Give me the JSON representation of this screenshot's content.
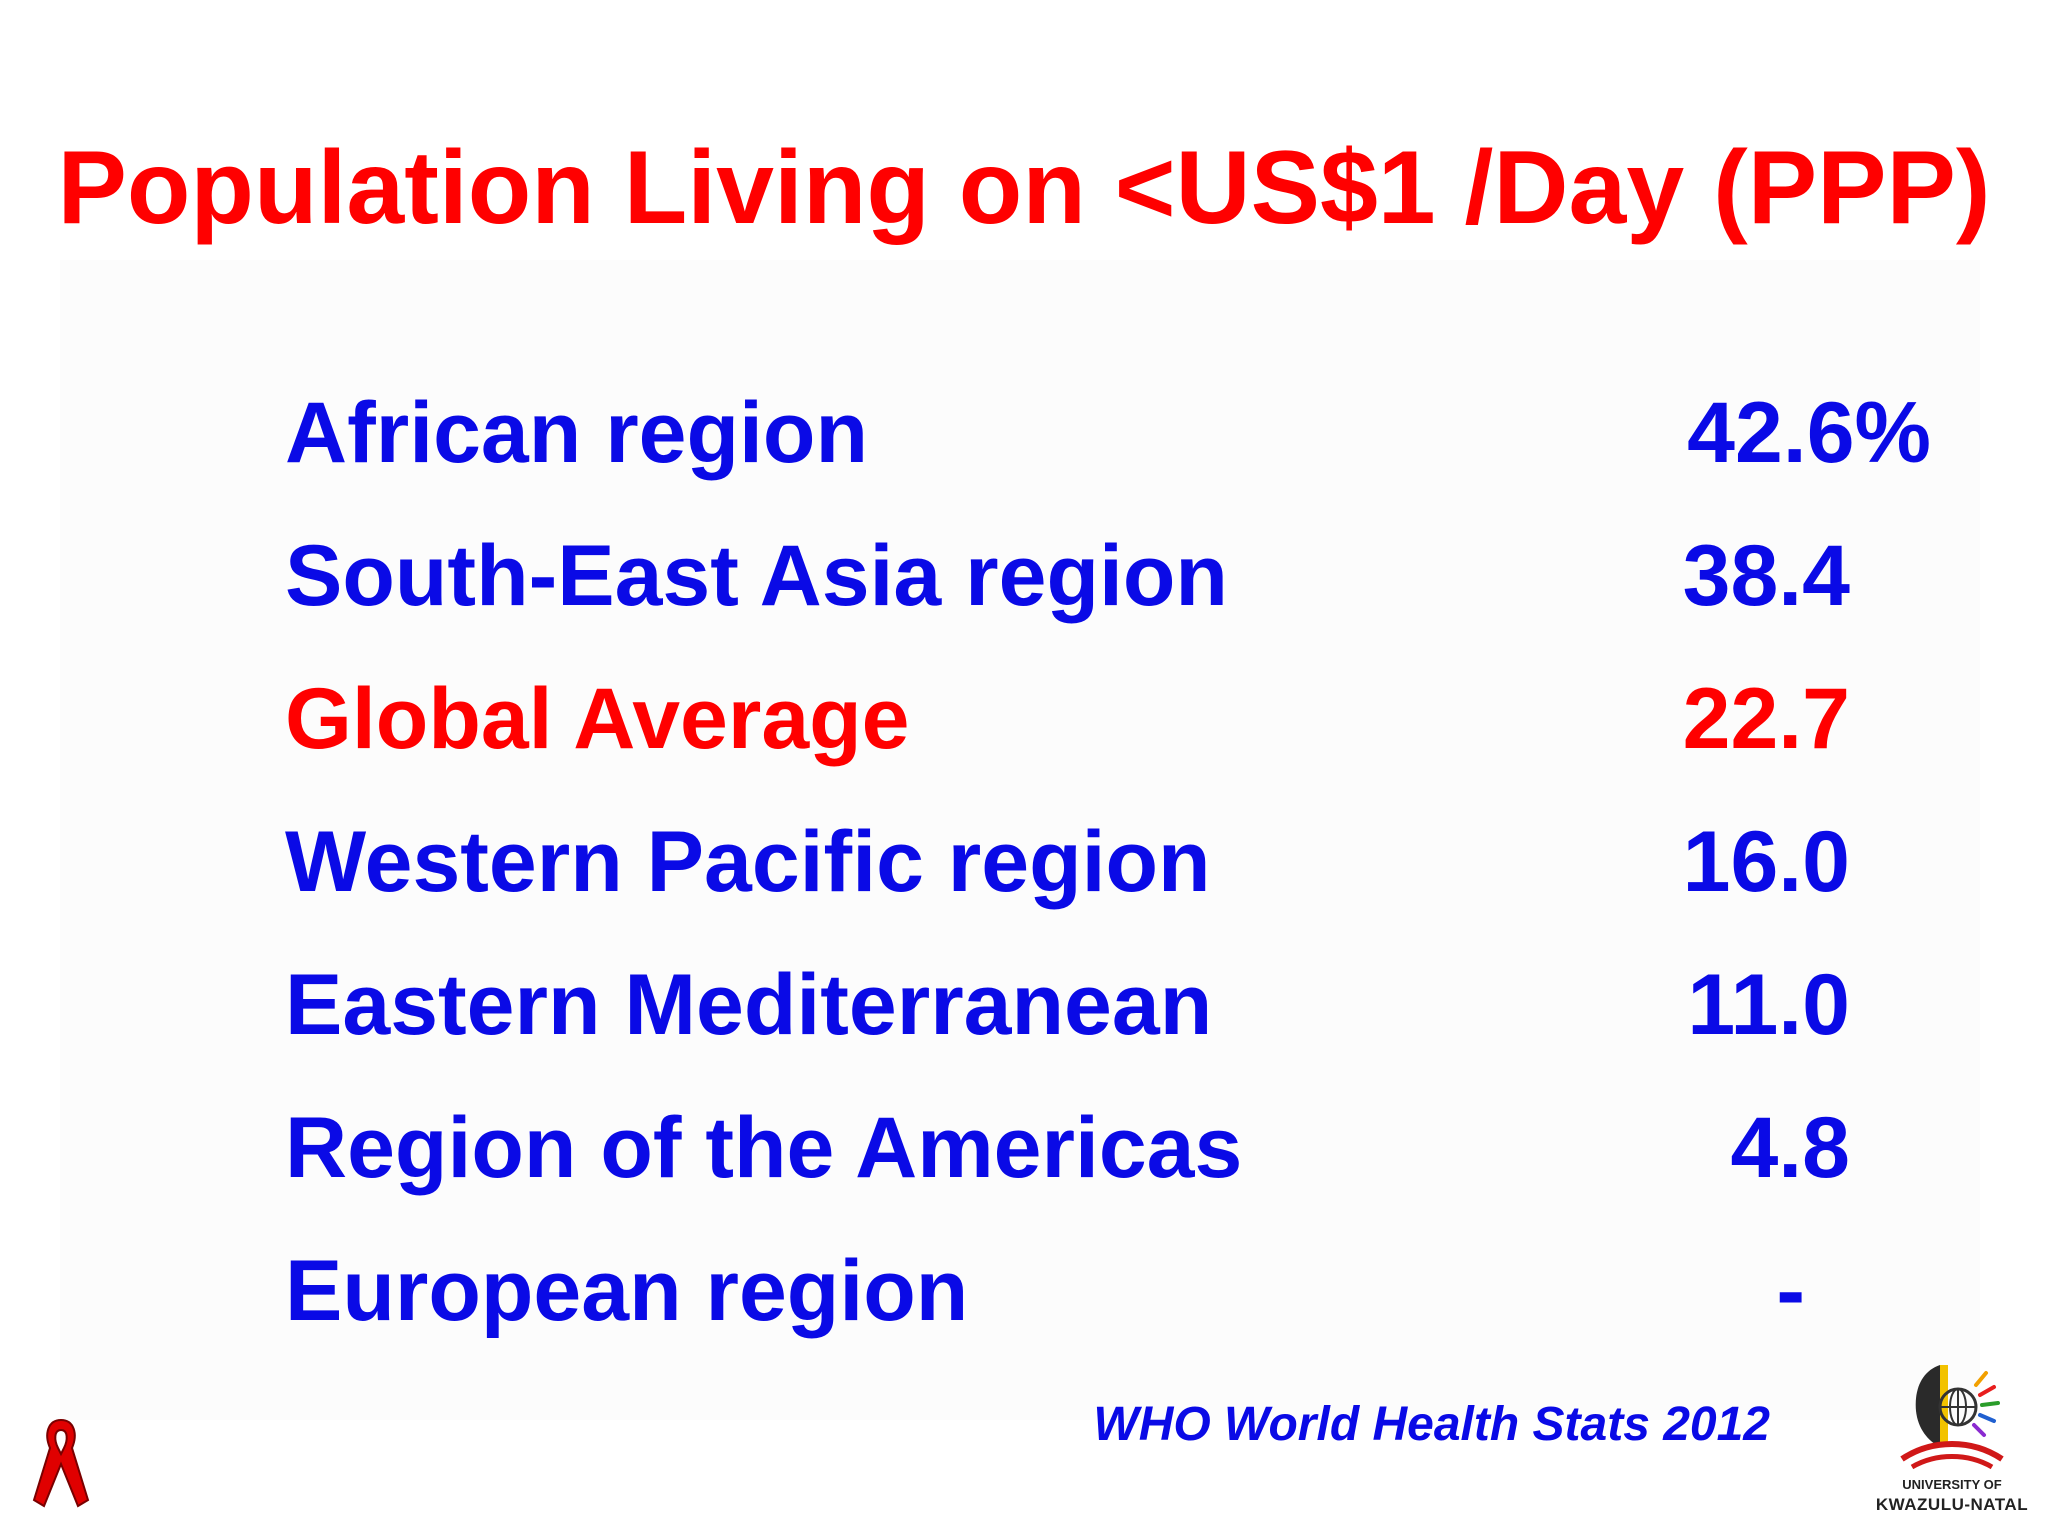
{
  "slide": {
    "title": "Population Living on <US$1 /Day (PPP)",
    "rows": [
      {
        "label": "African region",
        "value": "42.6%"
      },
      {
        "label": "South-East Asia region",
        "value": "38.4"
      },
      {
        "label": "Global Average",
        "value": "22.7"
      },
      {
        "label": "Western Pacific region",
        "value": "16.0"
      },
      {
        "label": "Eastern Mediterranean",
        "value": "11.0"
      },
      {
        "label": "Region of the Americas",
        "value": "4.8"
      },
      {
        "label": "European region",
        "value": "-"
      }
    ],
    "source": "WHO World Health Stats 2012",
    "logo": {
      "line1": "UNIVERSITY OF",
      "line2": "KWAZULU-NATAL"
    }
  },
  "colors": {
    "title": "#ff0000",
    "body_text": "#0a0ae6",
    "highlight": "#ff0000",
    "background": "#ffffff"
  },
  "icons": {
    "corner_left": "red-ribbon-icon",
    "corner_right": "university-logo"
  }
}
